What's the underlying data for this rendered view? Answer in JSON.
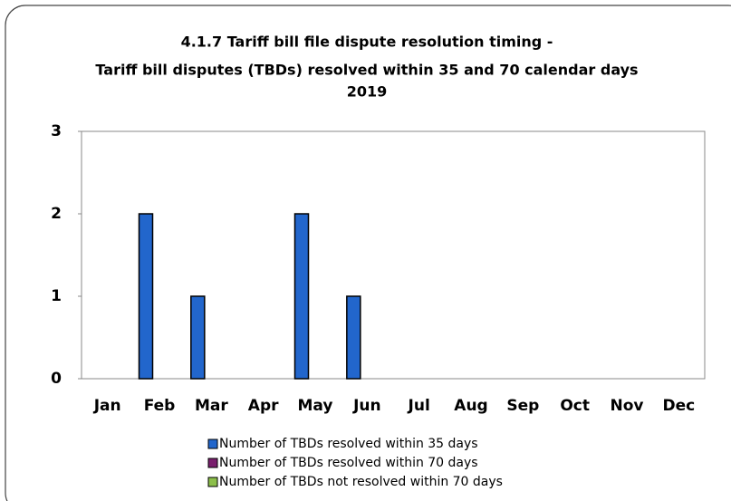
{
  "chart_data": {
    "type": "bar",
    "title": [
      "4.1.7 Tariff bill file dispute resolution timing -",
      "Tariff bill disputes (TBDs) resolved within 35 and 70 calendar days",
      "2019"
    ],
    "categories": [
      "Jan",
      "Feb",
      "Mar",
      "Apr",
      "May",
      "Jun",
      "Jul",
      "Aug",
      "Sep",
      "Oct",
      "Nov",
      "Dec"
    ],
    "series": [
      {
        "name": "Number of TBDs resolved within 35 days",
        "color": "#2266cc",
        "values": [
          0,
          2,
          1,
          0,
          2,
          1,
          0,
          0,
          0,
          0,
          0,
          0
        ]
      },
      {
        "name": "Number of TBDs  resolved within 70 days",
        "color": "#7a1f6e",
        "values": [
          0,
          0,
          0,
          0,
          0,
          0,
          0,
          0,
          0,
          0,
          0,
          0
        ]
      },
      {
        "name": "Number of TBDs not resolved within 70 days",
        "color": "#8cbf4a",
        "values": [
          0,
          0,
          0,
          0,
          0,
          0,
          0,
          0,
          0,
          0,
          0,
          0
        ]
      }
    ],
    "ylim": [
      0,
      3
    ],
    "yticks": [
      0,
      1,
      2,
      3
    ],
    "grid": false
  }
}
